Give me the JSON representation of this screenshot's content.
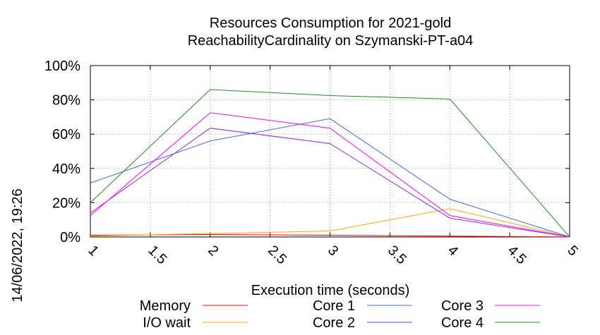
{
  "chart_data": {
    "type": "line",
    "title_line1": "Resources Consumption for 2021-gold",
    "title_line2": "ReachabilityCardinality on Szymanski-PT-a04",
    "xlabel": "Execution time (seconds)",
    "ylabel": "",
    "timestamp": "14/06/2022, 19:26",
    "xlim": [
      1,
      5
    ],
    "ylim": [
      0,
      100
    ],
    "x_ticks": [
      "1",
      "1.5",
      "2",
      "2.5",
      "3",
      "3.5",
      "4",
      "4.5",
      "5"
    ],
    "y_ticks": [
      "0%",
      "20%",
      "40%",
      "60%",
      "80%",
      "100%"
    ],
    "grid": true,
    "legend_position": "bottom",
    "x": [
      1,
      2,
      3,
      4,
      5
    ],
    "series": [
      {
        "name": "Memory",
        "color": "#ff0000",
        "values": [
          1,
          1.5,
          1,
          0.5,
          0
        ]
      },
      {
        "name": "I/O wait",
        "color": "#ffa500",
        "values": [
          0.5,
          2,
          3.5,
          16.5,
          0
        ]
      },
      {
        "name": "Core 1",
        "color": "#4169e1",
        "values": [
          31.5,
          56,
          69,
          22,
          0
        ]
      },
      {
        "name": "Core 2",
        "color": "#8a2be2",
        "values": [
          14,
          63.5,
          54.5,
          11,
          0
        ]
      },
      {
        "name": "Core 3",
        "color": "#ff00ff",
        "values": [
          12.5,
          72.5,
          63.5,
          12.5,
          0
        ]
      },
      {
        "name": "Core 4",
        "color": "#228b22",
        "values": [
          20,
          86,
          82.5,
          80.5,
          0
        ]
      }
    ]
  }
}
